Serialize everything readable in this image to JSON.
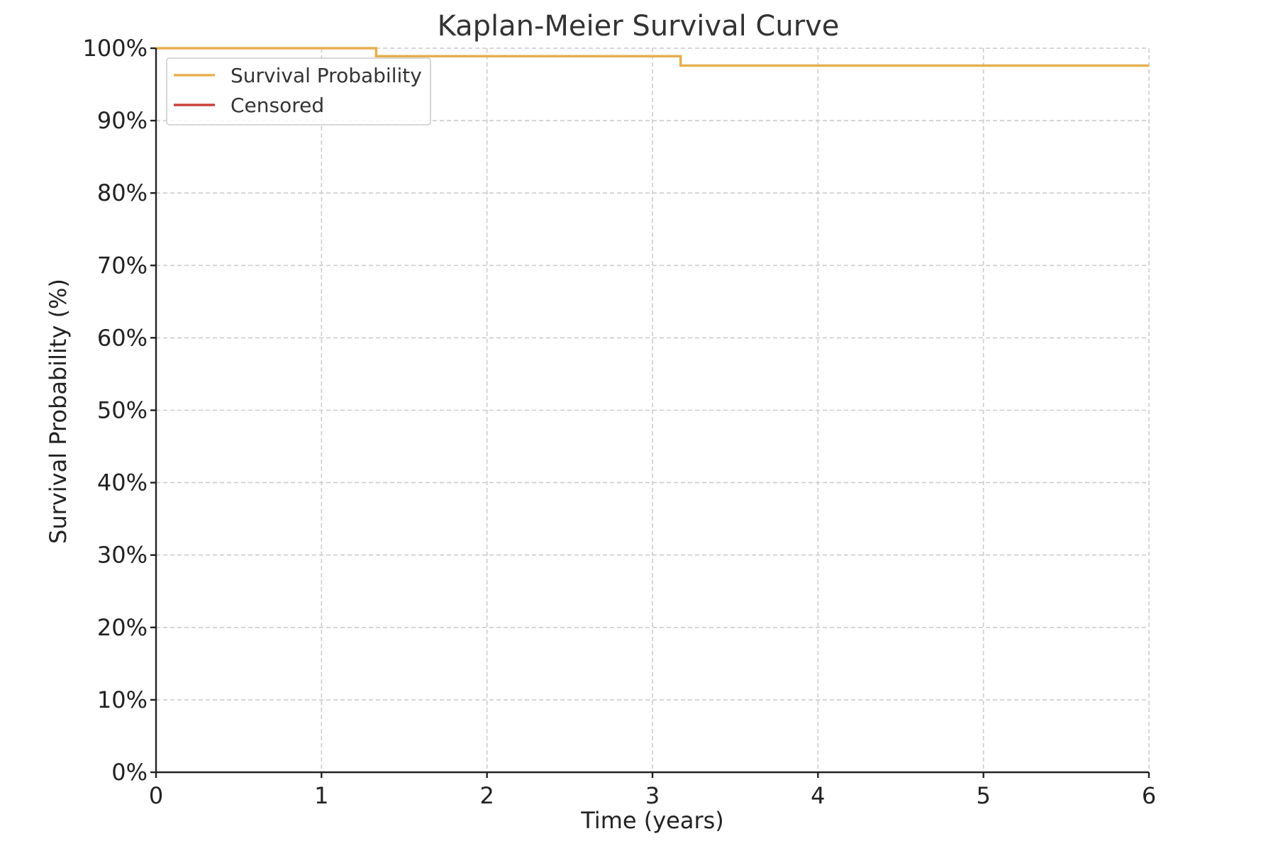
{
  "chart_data": {
    "type": "line",
    "title": "Kaplan-Meier Survival Curve",
    "xlabel": "Time (years)",
    "ylabel": "Survival Probability (%)",
    "xlim": [
      0,
      6
    ],
    "ylim": [
      0,
      100
    ],
    "x_ticks": [
      "0",
      "1",
      "2",
      "3",
      "4",
      "5",
      "6"
    ],
    "y_ticks": [
      "0%",
      "10%",
      "20%",
      "30%",
      "40%",
      "50%",
      "60%",
      "70%",
      "80%",
      "90%",
      "100%"
    ],
    "grid": true,
    "legend_position": "top-left",
    "series": [
      {
        "name": "Survival Probability",
        "color": "#e6b04f",
        "step": "post",
        "x": [
          0,
          1.33,
          3.17,
          6
        ],
        "y": [
          100,
          98.9,
          97.6,
          97.6
        ]
      },
      {
        "name": "Censored",
        "color": "#c9423a",
        "x": [],
        "y": []
      }
    ]
  }
}
